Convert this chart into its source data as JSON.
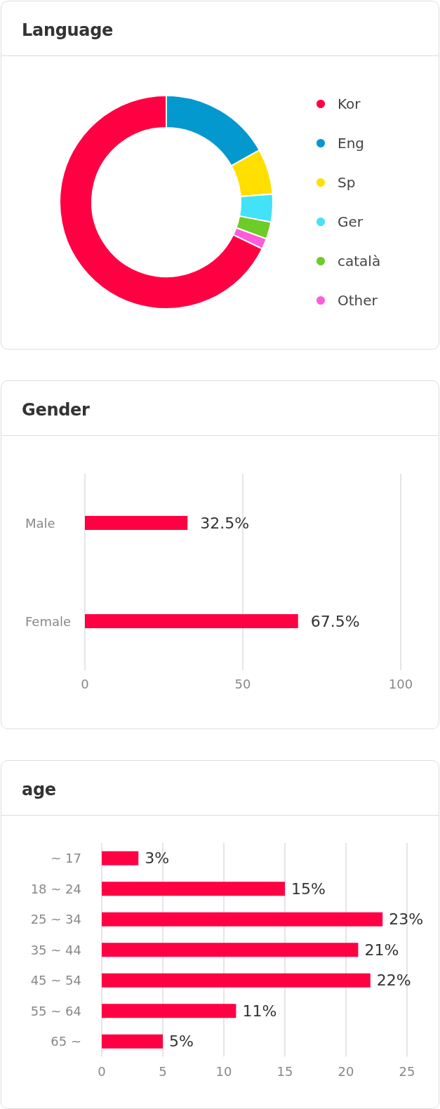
{
  "chart_data": [
    {
      "type": "donut",
      "title": "Language",
      "categories": [
        "Kor",
        "Eng",
        "Sp",
        "Ger",
        "català",
        "Other"
      ],
      "values": [
        67.8,
        16.9,
        6.9,
        4.2,
        2.6,
        1.6
      ],
      "colors": [
        "#ff0043",
        "#0399cf",
        "#ffdf00",
        "#42e2f8",
        "#6dcc28",
        "#ff5bdb"
      ],
      "legend": "right"
    },
    {
      "type": "bar",
      "title": "Gender",
      "orientation": "horizontal",
      "categories": [
        "Male",
        "Female"
      ],
      "values": [
        32.5,
        67.5
      ],
      "value_labels": [
        "32.5%",
        "67.5%"
      ],
      "color": "#ff0043",
      "xlim": [
        0,
        100
      ],
      "xticks": [
        0,
        50,
        100
      ],
      "grid": "x"
    },
    {
      "type": "bar",
      "title": "age",
      "orientation": "horizontal",
      "categories": [
        "~ 17",
        "18 ~ 24",
        "25 ~ 34",
        "35 ~ 44",
        "45 ~ 54",
        "55 ~ 64",
        "65 ~"
      ],
      "values": [
        3,
        15,
        23,
        21,
        22,
        11,
        5
      ],
      "value_labels": [
        "3%",
        "15%",
        "23%",
        "21%",
        "22%",
        "11%",
        "5%"
      ],
      "color": "#ff0043",
      "xlim": [
        0,
        25
      ],
      "xticks": [
        0,
        5,
        10,
        15,
        20,
        25
      ],
      "grid": "x"
    }
  ]
}
